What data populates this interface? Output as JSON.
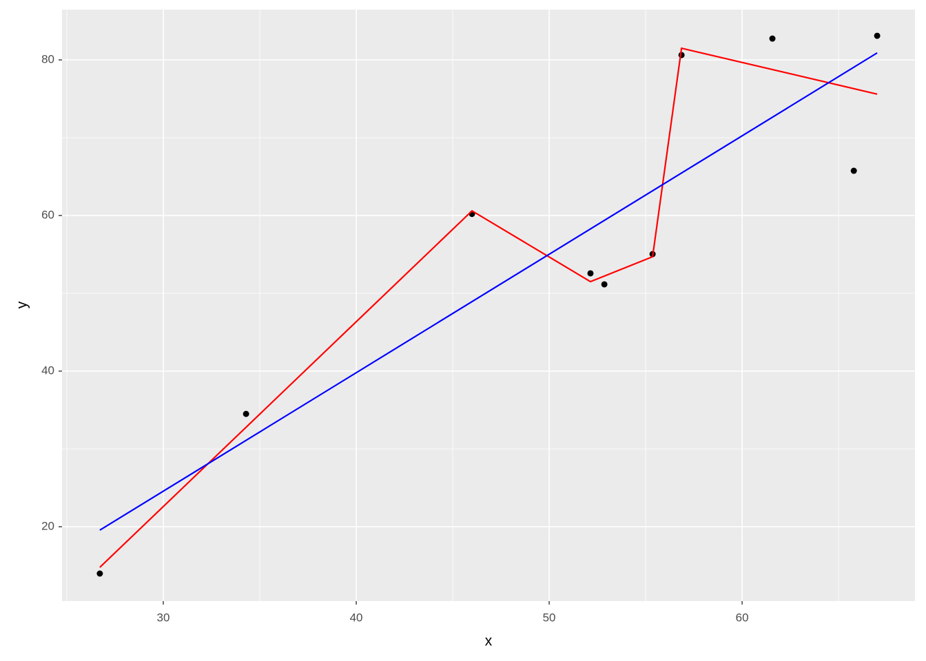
{
  "chart_data": {
    "type": "scatter",
    "x_label": "x",
    "y_label": "y",
    "xlim": [
      24.75,
      68.96
    ],
    "ylim": [
      10.44,
      86.46
    ],
    "xticks": [
      30,
      40,
      50,
      60
    ],
    "yticks": [
      20,
      40,
      60,
      80
    ],
    "x_minor_ticks": [
      25,
      35,
      45,
      55,
      65
    ],
    "y_minor_ticks": [
      30,
      50,
      70
    ],
    "grid": true,
    "points": {
      "color": "#000000",
      "x": [
        26.71,
        34.29,
        46.0,
        52.14,
        52.86,
        55.36,
        56.86,
        61.57,
        65.79,
        67.0
      ],
      "y": [
        13.98,
        34.5,
        60.2,
        52.57,
        51.15,
        55.04,
        80.62,
        82.74,
        65.75,
        83.1
      ]
    },
    "lines": [
      {
        "color": "#ff0000",
        "x": [
          26.71,
          46.0,
          52.14,
          55.36,
          56.86,
          67.0
        ],
        "y": [
          14.78,
          60.6,
          51.5,
          54.7,
          81.5,
          75.6
        ]
      },
      {
        "color": "#0000ff",
        "x": [
          26.71,
          67.0
        ],
        "y": [
          19.56,
          80.9
        ]
      }
    ]
  }
}
